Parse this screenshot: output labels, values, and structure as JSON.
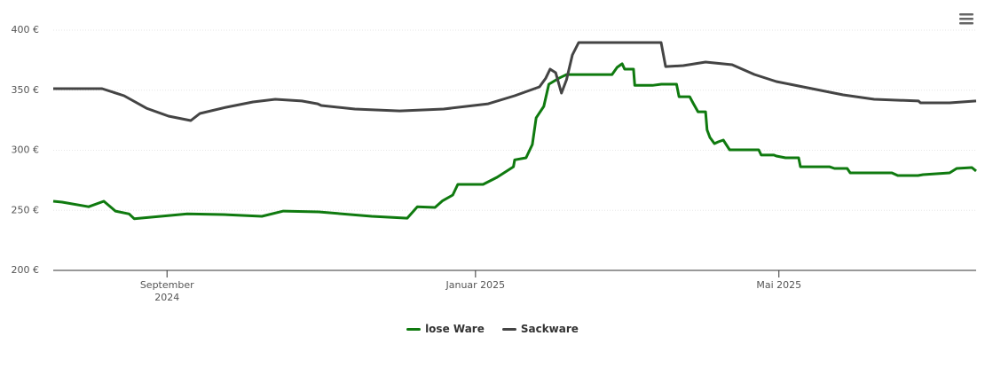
{
  "chart_data": {
    "type": "line",
    "xlim": [
      0,
      365
    ],
    "xticks": [
      {
        "value": 45,
        "label": "September 2024"
      },
      {
        "value": 167,
        "label": "Januar 2025"
      },
      {
        "value": 287,
        "label": "Mai 2025"
      }
    ],
    "ylim": [
      200,
      400
    ],
    "yticks": [
      {
        "value": 200,
        "label": "200 €"
      },
      {
        "value": 250,
        "label": "250 €"
      },
      {
        "value": 300,
        "label": "300 €"
      },
      {
        "value": 350,
        "label": "350 €"
      },
      {
        "value": 400,
        "label": "400 €"
      }
    ],
    "grid": true,
    "legend": "bottom",
    "series": [
      {
        "name": "lose Ware",
        "color": "#0f7a0f",
        "x": [
          0,
          3.5,
          14,
          20,
          24.6,
          30,
          32,
          53,
          67,
          82.5,
          91,
          105,
          126,
          140,
          144,
          151,
          154,
          158,
          160,
          170,
          175.5,
          182,
          182.5,
          187,
          189.5,
          191,
          194,
          196,
          200,
          203,
          221,
          223,
          225,
          226,
          229.5,
          230,
          237,
          240.5,
          246.5,
          247.5,
          251.7,
          253,
          255,
          258,
          258.6,
          259.7,
          261.5,
          263,
          265,
          267.5,
          279,
          280,
          285,
          286,
          289.6,
          294.8,
          295.5,
          307,
          309,
          314,
          315.2,
          331.7,
          334,
          342,
          344,
          354.5,
          357.3,
          363.3,
          365
        ],
        "values": [
          257.6,
          256.8,
          253,
          257.6,
          249.4,
          247,
          243,
          247,
          246.5,
          245,
          249.4,
          248.7,
          245,
          243.5,
          253,
          252.4,
          258,
          262.7,
          271.6,
          271.6,
          277.5,
          286.3,
          292,
          293.7,
          304.8,
          327,
          336.5,
          355,
          360,
          363,
          363,
          369,
          372,
          367.5,
          367.5,
          354,
          354,
          355,
          355,
          344.6,
          344.6,
          339.5,
          332,
          332,
          317,
          310.7,
          305.5,
          307,
          308.5,
          300.4,
          300.4,
          296,
          296,
          295.2,
          293.7,
          293.7,
          286.3,
          286.3,
          284.9,
          284.9,
          281.2,
          281.2,
          279,
          279,
          279.7,
          281.2,
          284.9,
          285.6,
          282.7
        ]
      },
      {
        "name": "Sackware",
        "color": "#444444",
        "x": [
          0,
          19.3,
          28,
          36.9,
          45.6,
          54.4,
          58,
          68.4,
          79,
          87.8,
          98.3,
          104.6,
          106,
          119.3,
          137,
          154.4,
          172,
          182.5,
          192.3,
          194.8,
          196.5,
          198.7,
          201,
          203,
          205.3,
          207.8,
          224.6,
          240.4,
          242.2,
          249.2,
          258,
          268.5,
          277.3,
          286,
          298.3,
          312.4,
          324.7,
          342.2,
          343,
          354.5,
          365
        ],
        "values": [
          351.3,
          351.3,
          345.4,
          335,
          328.4,
          324.7,
          330.6,
          335.8,
          340.2,
          342.4,
          341,
          338.7,
          337.3,
          334.3,
          332.8,
          334.3,
          338.7,
          345.4,
          352.8,
          360,
          367.5,
          364.6,
          347.6,
          358.7,
          379.3,
          389.7,
          389.7,
          389.7,
          369.7,
          370.5,
          373.4,
          371.2,
          363.1,
          357.2,
          352,
          346.1,
          342.4,
          341,
          339.5,
          339.5,
          341
        ]
      }
    ]
  }
}
